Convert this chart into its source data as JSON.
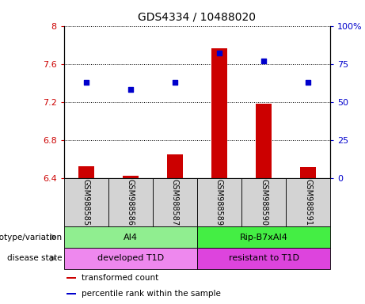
{
  "title": "GDS4334 / 10488020",
  "samples": [
    "GSM988585",
    "GSM988586",
    "GSM988587",
    "GSM988589",
    "GSM988590",
    "GSM988591"
  ],
  "transformed_count": [
    6.52,
    6.42,
    6.65,
    7.76,
    7.18,
    6.51
  ],
  "percentile_rank": [
    63,
    58,
    63,
    82,
    77,
    63
  ],
  "bar_color": "#cc0000",
  "dot_color": "#0000cc",
  "ylim_left": [
    6.4,
    8.0
  ],
  "ylim_right": [
    0,
    100
  ],
  "yticks_left": [
    6.4,
    6.8,
    7.2,
    7.6,
    8.0
  ],
  "yticks_right": [
    0,
    25,
    50,
    75,
    100
  ],
  "ytick_labels_left": [
    "6.4",
    "6.8",
    "7.2",
    "7.6",
    "8"
  ],
  "ytick_labels_right": [
    "0",
    "25",
    "50",
    "75",
    "100%"
  ],
  "genotype_groups": [
    {
      "label": "AI4",
      "samples": [
        0,
        1,
        2
      ],
      "color": "#90ee90"
    },
    {
      "label": "Rip-B7xAI4",
      "samples": [
        3,
        4,
        5
      ],
      "color": "#44ee44"
    }
  ],
  "disease_groups": [
    {
      "label": "developed T1D",
      "samples": [
        0,
        1,
        2
      ],
      "color": "#ee88ee"
    },
    {
      "label": "resistant to T1D",
      "samples": [
        3,
        4,
        5
      ],
      "color": "#dd44dd"
    }
  ],
  "row_labels": [
    "genotype/variation",
    "disease state"
  ],
  "legend_items": [
    {
      "label": "transformed count",
      "color": "#cc0000"
    },
    {
      "label": "percentile rank within the sample",
      "color": "#0000cc"
    }
  ],
  "tick_color_left": "#cc0000",
  "tick_color_right": "#0000cc",
  "grid_color": "#000000",
  "xtick_bg": "#d3d3d3",
  "bar_width": 0.35
}
